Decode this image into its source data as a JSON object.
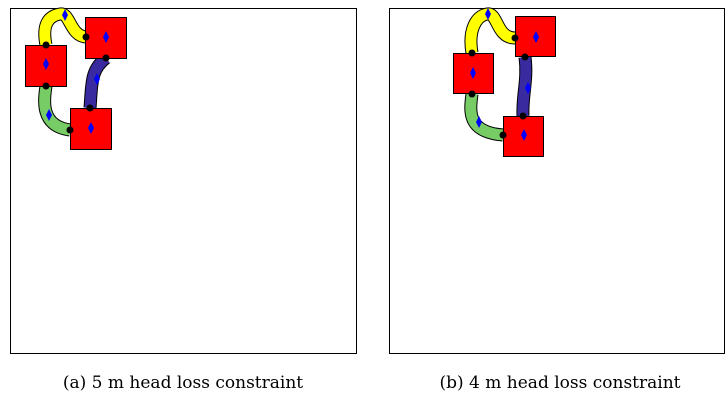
{
  "panels": [
    {
      "caption": "(a) 5 m head loss constraint"
    },
    {
      "caption": "(b) 4 m head loss constraint"
    }
  ]
}
